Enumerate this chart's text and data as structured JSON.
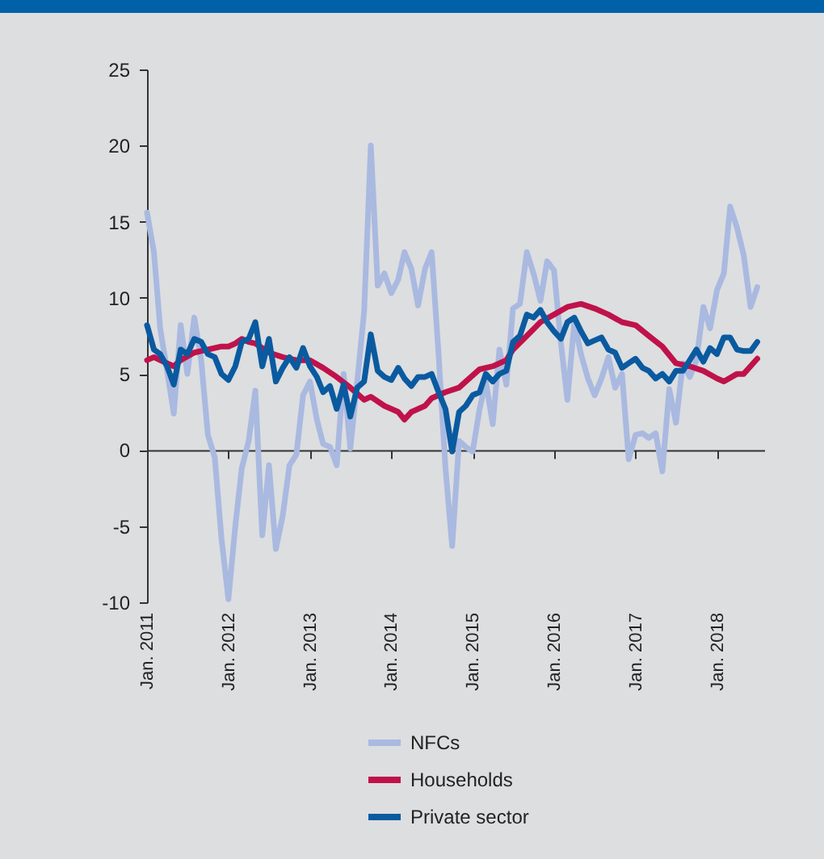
{
  "chart_data": {
    "type": "line",
    "x": [
      "2011-01",
      "2011-02",
      "2011-03",
      "2011-04",
      "2011-05",
      "2011-06",
      "2011-07",
      "2011-08",
      "2011-09",
      "2011-10",
      "2011-11",
      "2011-12",
      "2012-01",
      "2012-02",
      "2012-03",
      "2012-04",
      "2012-05",
      "2012-06",
      "2012-07",
      "2012-08",
      "2012-09",
      "2012-10",
      "2012-11",
      "2012-12",
      "2013-01",
      "2013-02",
      "2013-03",
      "2013-04",
      "2013-05",
      "2013-06",
      "2013-07",
      "2013-08",
      "2013-09",
      "2013-10",
      "2013-11",
      "2013-12",
      "2014-01",
      "2014-02",
      "2014-03",
      "2014-04",
      "2014-05",
      "2014-06",
      "2014-07",
      "2014-08",
      "2014-09",
      "2014-10",
      "2014-11",
      "2014-12",
      "2015-01",
      "2015-02",
      "2015-03",
      "2015-04",
      "2015-05",
      "2015-06",
      "2015-07",
      "2015-08",
      "2015-09",
      "2015-10",
      "2015-11",
      "2015-12",
      "2016-01",
      "2016-02",
      "2016-03",
      "2016-04",
      "2016-05",
      "2016-06",
      "2016-07",
      "2016-08",
      "2016-09",
      "2016-10",
      "2016-11",
      "2016-12",
      "2017-01",
      "2017-02",
      "2017-03",
      "2017-04",
      "2017-05",
      "2017-06",
      "2017-07",
      "2017-08",
      "2017-09",
      "2017-10",
      "2017-11",
      "2017-12",
      "2018-01",
      "2018-02",
      "2018-03",
      "2018-04",
      "2018-05",
      "2018-06",
      "2018-07"
    ],
    "series": [
      {
        "name": "NFCs",
        "color": "#a9b9e0",
        "values": [
          15.6,
          13,
          8,
          5.2,
          2.4,
          8.2,
          5,
          8.7,
          5.9,
          1,
          -0.5,
          -5.8,
          -9.8,
          -5,
          -1.2,
          0.6,
          3.9,
          -5.6,
          -1,
          -6.5,
          -4.3,
          -1,
          -0.3,
          3.6,
          4.5,
          2,
          0.4,
          0.2,
          -1,
          5,
          0.1,
          4.5,
          9.1,
          20,
          10.8,
          11.6,
          10.3,
          11.2,
          13,
          11.9,
          9.5,
          11.9,
          13,
          6.3,
          -1.2,
          -6.3,
          0.6,
          0.2,
          -0.1,
          2.7,
          4.5,
          1.7,
          6.6,
          4.3,
          9.3,
          9.6,
          13,
          11.6,
          9.8,
          12.4,
          11.8,
          7,
          3.3,
          8.4,
          6.3,
          4.7,
          3.6,
          4.7,
          6.1,
          4.1,
          5,
          -0.6,
          1,
          1.1,
          0.8,
          1.1,
          -1.4,
          4,
          1.8,
          5.7,
          4.8,
          5.9,
          9.4,
          8,
          10.5,
          11.6,
          16,
          14.6,
          12.8,
          9.4,
          10.7
        ]
      },
      {
        "name": "Households",
        "color": "#c0124a",
        "x": [
          "2011-01",
          "2011-02",
          "2011-03",
          "2011-04",
          "2011-05",
          "2011-06",
          "2011-08",
          "2011-10",
          "2011-12",
          "2012-01",
          "2012-02",
          "2012-03",
          "2012-04",
          "2012-05",
          "2012-07",
          "2012-09",
          "2012-11",
          "2013-01",
          "2013-03",
          "2013-05",
          "2013-07",
          "2013-09",
          "2013-10",
          "2013-12",
          "2014-02",
          "2014-03",
          "2014-04",
          "2014-06",
          "2014-07",
          "2014-09",
          "2014-11",
          "2014-12",
          "2015-02",
          "2015-04",
          "2015-06",
          "2015-07",
          "2015-09",
          "2015-11",
          "2016-01",
          "2016-03",
          "2016-05",
          "2016-07",
          "2016-09",
          "2016-11",
          "2017-01",
          "2017-03",
          "2017-05",
          "2017-07",
          "2017-09",
          "2017-11",
          "2018-01",
          "2018-02",
          "2018-04",
          "2018-05",
          "2018-07"
        ],
        "values": [
          5.9,
          6.1,
          5.9,
          5.7,
          5.5,
          5.9,
          6.4,
          6.6,
          6.8,
          6.8,
          7,
          7.3,
          7.1,
          7,
          6.4,
          6.1,
          5.9,
          5.9,
          5.4,
          4.8,
          4.1,
          3.3,
          3.5,
          2.9,
          2.5,
          2,
          2.5,
          2.9,
          3.4,
          3.8,
          4.1,
          4.5,
          5.3,
          5.5,
          5.9,
          6.6,
          7.5,
          8.4,
          8.9,
          9.4,
          9.6,
          9.3,
          8.9,
          8.4,
          8.2,
          7.5,
          6.8,
          5.7,
          5.5,
          5.2,
          4.7,
          4.5,
          5,
          5,
          6
        ]
      },
      {
        "name": "Private sector",
        "color": "#0a5aa0",
        "values": [
          8.2,
          6.6,
          6.3,
          5.5,
          4.3,
          6.6,
          6.3,
          7.3,
          7.1,
          6.3,
          6.1,
          5,
          4.6,
          5.5,
          7.1,
          7.3,
          8.4,
          5.5,
          7.3,
          4.5,
          5.4,
          6.1,
          5.4,
          6.7,
          5.5,
          4.8,
          3.8,
          4.2,
          2.7,
          4.3,
          2.2,
          4.1,
          4.5,
          7.6,
          5.2,
          4.8,
          4.6,
          5.4,
          4.7,
          4.2,
          4.8,
          4.8,
          5,
          3.8,
          2.7,
          -0.1,
          2.5,
          2.9,
          3.6,
          3.8,
          5,
          4.5,
          5,
          5.2,
          7.1,
          7.5,
          8.9,
          8.7,
          9.2,
          8.4,
          7.8,
          7.3,
          8.4,
          8.7,
          7.8,
          7,
          7.2,
          7.4,
          6.6,
          6.4,
          5.4,
          5.7,
          6,
          5.4,
          5.2,
          4.7,
          5,
          4.5,
          5.2,
          5.2,
          5.9,
          6.6,
          5.8,
          6.7,
          6.3,
          7.4,
          7.4,
          6.6,
          6.5,
          6.5,
          7.1
        ]
      }
    ],
    "xlim": [
      "2011-01",
      "2018-08"
    ],
    "xticks": [
      {
        "value": "2011-01",
        "label": "Jan. 2011"
      },
      {
        "value": "2012-01",
        "label": "Jan. 2012"
      },
      {
        "value": "2013-01",
        "label": "Jan. 2013"
      },
      {
        "value": "2014-01",
        "label": "Jan. 2014"
      },
      {
        "value": "2015-01",
        "label": "Jan. 2015"
      },
      {
        "value": "2016-01",
        "label": "Jan. 2016"
      },
      {
        "value": "2017-01",
        "label": "Jan. 2017"
      },
      {
        "value": "2018-01",
        "label": "Jan. 2018"
      }
    ],
    "ylim": [
      -10,
      25
    ],
    "yticks": [
      -10,
      -5,
      0,
      5,
      10,
      15,
      20,
      25
    ],
    "legend": "bottom",
    "marker": "none",
    "line_style": "solid"
  }
}
